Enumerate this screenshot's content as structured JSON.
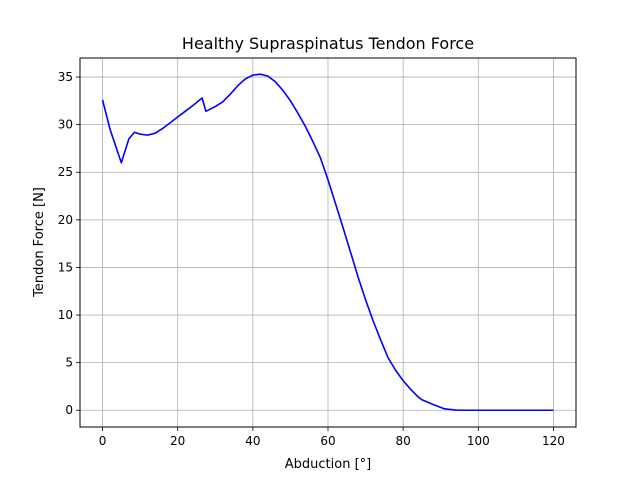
{
  "chart_data": {
    "type": "line",
    "title": "Healthy Supraspinatus Tendon Force",
    "xlabel": "Abduction [°]",
    "ylabel": "Tendon Force [N]",
    "xlim": [
      -6,
      126
    ],
    "ylim": [
      -1.76,
      37.0
    ],
    "xticks": [
      0,
      20,
      40,
      60,
      80,
      100,
      120
    ],
    "yticks": [
      0,
      5,
      10,
      15,
      20,
      25,
      30,
      35
    ],
    "grid": true,
    "series": [
      {
        "color": "#0000ff",
        "x": [
          0,
          2,
          5,
          7,
          8.5,
          10,
          12,
          14,
          16,
          18,
          20,
          22,
          24,
          26.5,
          27.5,
          30,
          32,
          34,
          36,
          38,
          40,
          42,
          44,
          46,
          48,
          50,
          52,
          54,
          56,
          58,
          60,
          62,
          64,
          66,
          68,
          70,
          72,
          74,
          76,
          78,
          80,
          82,
          84,
          85,
          88,
          91,
          94,
          96,
          100,
          110,
          120
        ],
        "y": [
          32.6,
          29.5,
          26.0,
          28.5,
          29.2,
          29.0,
          28.9,
          29.1,
          29.6,
          30.2,
          30.8,
          31.4,
          32.0,
          32.8,
          31.4,
          31.9,
          32.4,
          33.2,
          34.1,
          34.8,
          35.2,
          35.3,
          35.1,
          34.5,
          33.6,
          32.5,
          31.2,
          29.8,
          28.2,
          26.5,
          24.2,
          21.7,
          19.2,
          16.6,
          14.0,
          11.6,
          9.4,
          7.4,
          5.5,
          4.2,
          3.1,
          2.2,
          1.4,
          1.1,
          0.6,
          0.15,
          0.02,
          0.0,
          0.0,
          0.0,
          0.0
        ]
      }
    ]
  }
}
